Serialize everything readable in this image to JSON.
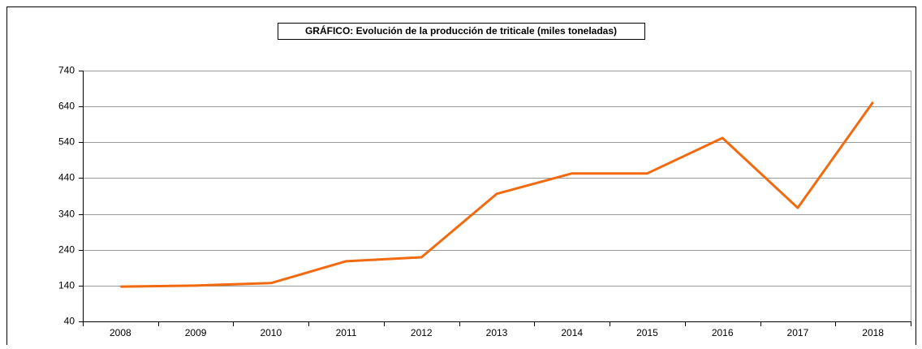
{
  "chart_data": {
    "type": "line",
    "title": "GRÁFICO: Evolución de la producción de triticale (miles toneladas)",
    "categories": [
      "2008",
      "2009",
      "2010",
      "2011",
      "2012",
      "2013",
      "2014",
      "2015",
      "2016",
      "2017",
      "2018"
    ],
    "values": [
      137,
      140,
      147,
      208,
      219,
      396,
      453,
      453,
      552,
      357,
      652
    ],
    "color": "#f26a10",
    "ylim": [
      40,
      740
    ],
    "yticks": [
      40,
      140,
      240,
      340,
      440,
      540,
      640,
      740
    ],
    "grid": true
  }
}
